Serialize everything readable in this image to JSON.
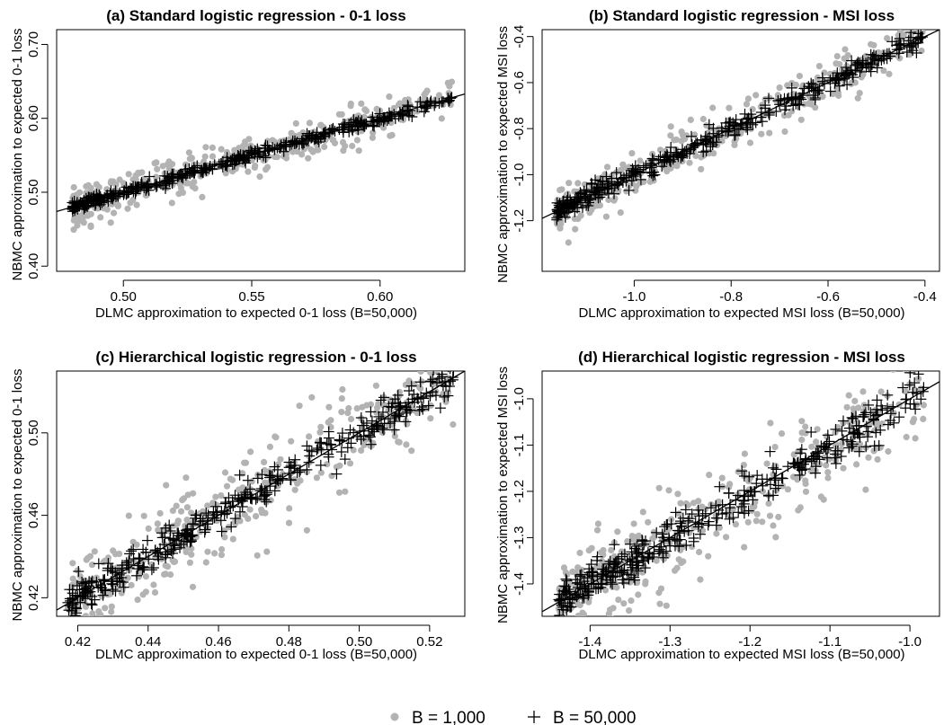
{
  "legend": {
    "items": [
      {
        "label": "B = 1,000",
        "marker": "dot",
        "color": "#b3b3b3"
      },
      {
        "label": "B = 50,000",
        "marker": "plus",
        "color": "#000000"
      }
    ],
    "placement": "bottom-center"
  },
  "colors": {
    "dots": "#b3b3b3",
    "plus": "#000000",
    "line": "#000000"
  },
  "chart_data": [
    {
      "type": "scatter",
      "title": "(a) Standard logistic regression - 0-1 loss",
      "xlabel": "DLMC approximation to expected 0-1 loss (B=50,000)",
      "ylabel": "NBMC approximation to expected 0-1 loss",
      "xlim": [
        0.474,
        0.633
      ],
      "ylim": [
        0.393,
        0.72
      ],
      "xticks": [
        0.5,
        0.55,
        0.6
      ],
      "xticklabels": [
        "0.50",
        "0.55",
        "0.60"
      ],
      "yticks": [
        0.4,
        0.5,
        0.6,
        0.7
      ],
      "yticklabels": [
        "0.40",
        "0.50",
        "0.60",
        "0.70"
      ],
      "reference_line": "y = x",
      "series": [
        {
          "name": "B = 1,000",
          "marker": "dot",
          "x_range": [
            0.48,
            0.628
          ],
          "n": 420,
          "spread": 0.014
        },
        {
          "name": "B = 50,000",
          "marker": "plus",
          "x_range": [
            0.48,
            0.628
          ],
          "n": 420,
          "spread": 0.0035
        }
      ]
    },
    {
      "type": "scatter",
      "title": "(b) Standard logistic regression - MSI loss",
      "xlabel": "DLMC approximation to expected MSI loss (B=50,000)",
      "ylabel": "NBMC approximation to expected MSI loss",
      "xlim": [
        -1.19,
        -0.37
      ],
      "ylim": [
        -1.42,
        -0.37
      ],
      "xticks": [
        -1.0,
        -0.8,
        -0.6,
        -0.4
      ],
      "xticklabels": [
        "-1.0",
        "-0.8",
        "-0.6",
        "-0.4"
      ],
      "yticks": [
        -1.2,
        -1.0,
        -0.8,
        -0.6,
        -0.4
      ],
      "yticklabels": [
        "-1.2",
        "-1.0",
        "-0.8",
        "-0.6",
        "-0.4"
      ],
      "reference_line": "y = x",
      "series": [
        {
          "name": "B = 1,000",
          "marker": "dot",
          "x_range": [
            -1.16,
            -0.4
          ],
          "n": 380,
          "spread": 0.05
        },
        {
          "name": "B = 50,000",
          "marker": "plus",
          "x_range": [
            -1.16,
            -0.4
          ],
          "n": 380,
          "spread": 0.022
        }
      ]
    },
    {
      "type": "scatter",
      "title": "(c) Hierarchical logistic regression - 0-1 loss",
      "xlabel": "DLMC approximation to expected 0-1 loss (B=50,000)",
      "ylabel": "NBMC approximation to expected 0-1 loss",
      "xlim": [
        0.414,
        0.53
      ],
      "ylim": [
        0.411,
        0.53
      ],
      "xticks": [
        0.42,
        0.44,
        0.46,
        0.48,
        0.5,
        0.52
      ],
      "xticklabels": [
        "0.42",
        "0.44",
        "0.46",
        "0.48",
        "0.50",
        "0.52"
      ],
      "yticks": [
        0.42,
        0.46,
        0.5
      ],
      "yticklabels": [
        "0.42",
        "0.46",
        "0.50"
      ],
      "reference_line": "y = x",
      "series": [
        {
          "name": "B = 1,000",
          "marker": "dot",
          "x_range": [
            0.417,
            0.527
          ],
          "n": 380,
          "spread": 0.012
        },
        {
          "name": "B = 50,000",
          "marker": "plus",
          "x_range": [
            0.417,
            0.527
          ],
          "n": 380,
          "spread": 0.0045
        }
      ]
    },
    {
      "type": "scatter",
      "title": "(d) Hierarchical logistic regression - MSI loss",
      "xlabel": "DLMC approximation to expected MSI loss (B=50,000)",
      "ylabel": "NBMC approximation to expected MSI loss",
      "xlim": [
        -1.46,
        -0.963
      ],
      "ylim": [
        -1.47,
        -0.94
      ],
      "xticks": [
        -1.4,
        -1.3,
        -1.2,
        -1.1,
        -1.0
      ],
      "xticklabels": [
        "-1.4",
        "-1.3",
        "-1.2",
        "-1.1",
        "-1.0"
      ],
      "yticks": [
        -1.4,
        -1.3,
        -1.2,
        -1.1,
        -1.0
      ],
      "yticklabels": [
        "-1.4",
        "-1.3",
        "-1.2",
        "-1.1",
        "-1.0"
      ],
      "reference_line": "y = x",
      "series": [
        {
          "name": "B = 1,000",
          "marker": "dot",
          "x_range": [
            -1.44,
            -0.98
          ],
          "n": 380,
          "spread": 0.05
        },
        {
          "name": "B = 50,000",
          "marker": "plus",
          "x_range": [
            -1.44,
            -0.98
          ],
          "n": 380,
          "spread": 0.022
        }
      ]
    }
  ]
}
